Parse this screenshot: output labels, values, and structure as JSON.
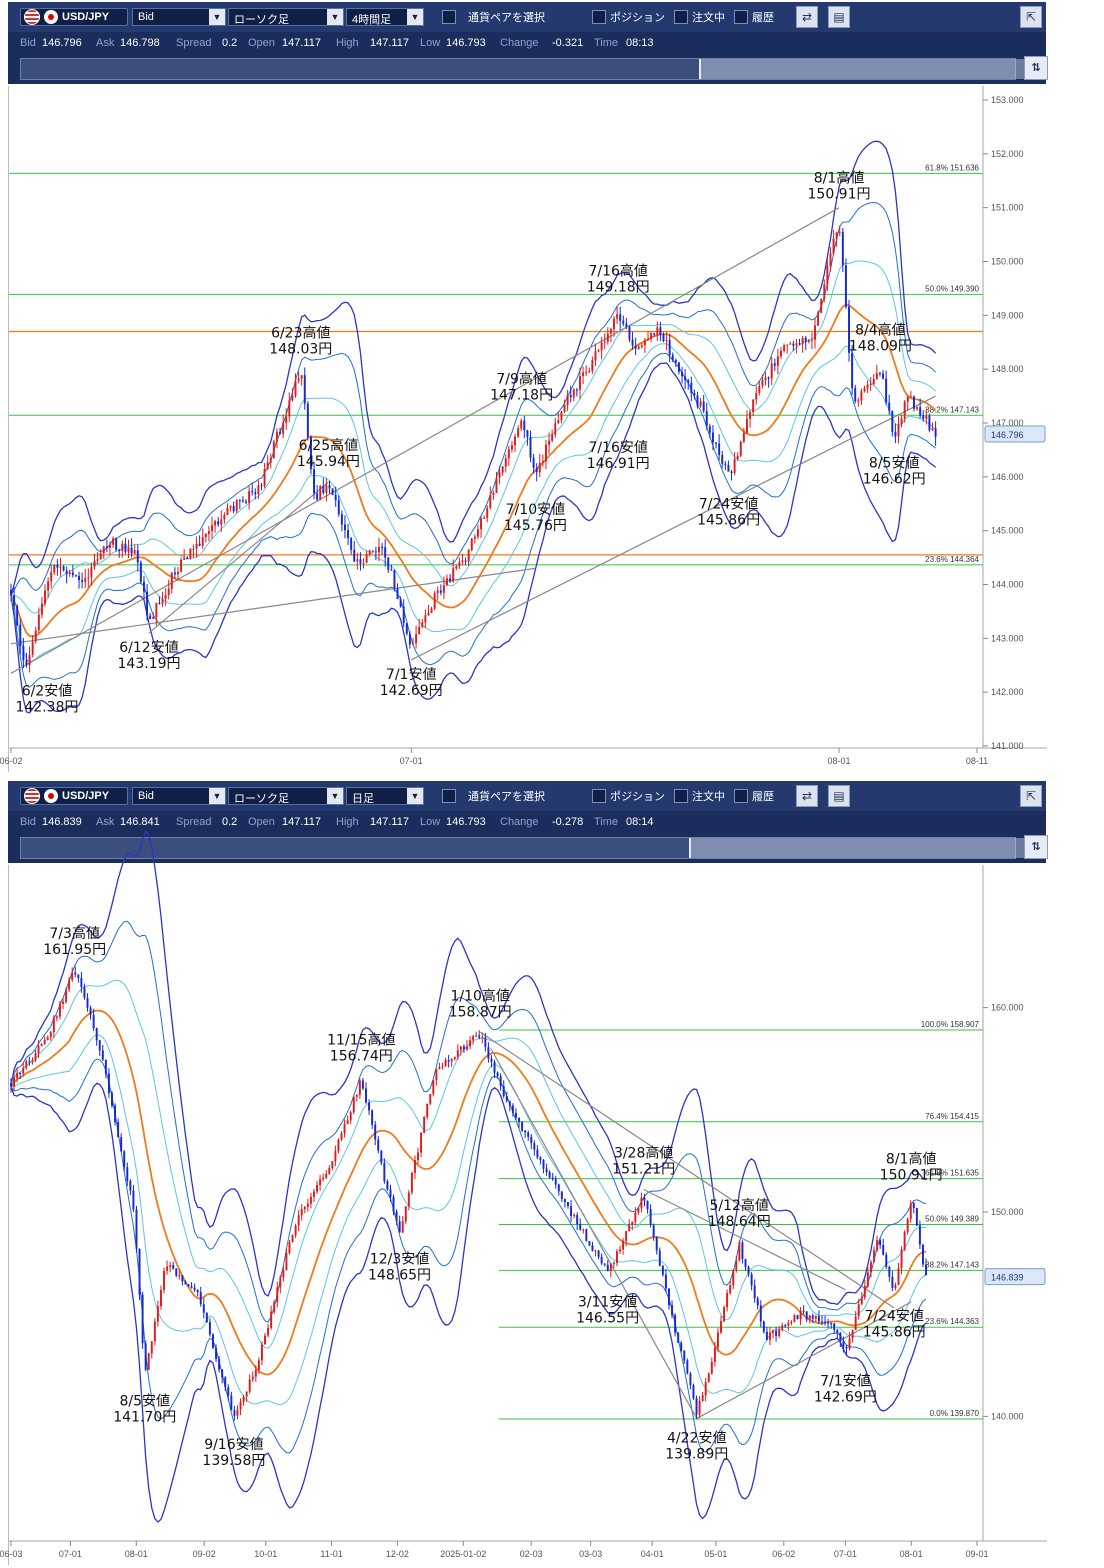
{
  "panels": [
    {
      "toolbar": {
        "pair": "USD/JPY",
        "price_type": "Bid",
        "chart_type": "ローソク足",
        "timeframe": "4時間足",
        "select_pair": "通貨ペアを選択",
        "position_label": "ポジション",
        "orders_label": "注文中",
        "history_label": "履歴"
      },
      "quote": {
        "bid_label": "Bid",
        "bid": "146.796",
        "ask_label": "Ask",
        "ask": "146.798",
        "spread_label": "Spread",
        "spread": "0.2",
        "open_label": "Open",
        "open": "147.117",
        "high_label": "High",
        "high": "147.117",
        "low_label": "Low",
        "low": "146.793",
        "change_label": "Change",
        "change": "-0.321",
        "time_label": "Time",
        "time": "08:13"
      },
      "current_price_tag": "146.796"
    },
    {
      "toolbar": {
        "pair": "USD/JPY",
        "price_type": "Bid",
        "chart_type": "ローソク足",
        "timeframe": "日足",
        "select_pair": "通貨ペアを選択",
        "position_label": "ポジション",
        "orders_label": "注文中",
        "history_label": "履歴"
      },
      "quote": {
        "bid_label": "Bid",
        "bid": "146.839",
        "ask_label": "Ask",
        "ask": "146.841",
        "spread_label": "Spread",
        "spread": "0.2",
        "open_label": "Open",
        "open": "147.117",
        "high_label": "High",
        "high": "147.117",
        "low_label": "Low",
        "low": "146.793",
        "change_label": "Change",
        "change": "-0.278",
        "time_label": "Time",
        "time": "08:14"
      },
      "current_price_tag": "146.839"
    }
  ],
  "chart_data": [
    {
      "type": "candlestick",
      "timeframe": "4時間足",
      "ylim": [
        141.0,
        153.0
      ],
      "yticks": [
        "141.000",
        "142.000",
        "143.000",
        "144.000",
        "145.000",
        "146.000",
        "147.000",
        "148.000",
        "149.000",
        "150.000",
        "151.000",
        "152.000",
        "153.000"
      ],
      "x_range": [
        "2025-06-02",
        "2025-08-11"
      ],
      "xticks": [
        {
          "date": "2025-06-02",
          "label": "06-02"
        },
        {
          "date": "2025-07-01",
          "label": "07-01"
        },
        {
          "date": "2025-08-01",
          "label": "08-01"
        },
        {
          "date": "2025-08-11",
          "label": "08-11"
        }
      ],
      "current_price": 146.796,
      "fib_levels": [
        {
          "label": "23.6%",
          "value": "144.364",
          "v": 144.364
        },
        {
          "label": "38.2%",
          "value": "147.143",
          "v": 147.143
        },
        {
          "label": "50.0%",
          "value": "149.390",
          "v": 149.39
        },
        {
          "label": "61.8%",
          "value": "151.636",
          "v": 151.636
        }
      ],
      "horizontal_lines": [
        148.7,
        144.55
      ],
      "annotations": [
        {
          "date": "2025-06-02",
          "price": 142.38,
          "kind": "low",
          "label": "6/2安値",
          "value": "142.38円"
        },
        {
          "date": "2025-06-12",
          "price": 143.19,
          "kind": "low",
          "label": "6/12安値",
          "value": "143.19円"
        },
        {
          "date": "2025-06-23",
          "price": 148.03,
          "kind": "high",
          "label": "6/23高値",
          "value": "148.03円"
        },
        {
          "date": "2025-06-25",
          "price": 145.94,
          "kind": "high",
          "label": "6/25高値",
          "value": "145.94円"
        },
        {
          "date": "2025-07-01",
          "price": 142.69,
          "kind": "low",
          "label": "7/1安値",
          "value": "142.69円"
        },
        {
          "date": "2025-07-09",
          "price": 147.18,
          "kind": "high",
          "label": "7/9高値",
          "value": "147.18円"
        },
        {
          "date": "2025-07-10",
          "price": 145.76,
          "kind": "low",
          "label": "7/10安値",
          "value": "145.76円"
        },
        {
          "date": "2025-07-16",
          "price": 149.18,
          "kind": "high",
          "label": "7/16高値",
          "value": "149.18円"
        },
        {
          "date": "2025-07-16",
          "price": 146.91,
          "kind": "low",
          "label": "7/16安値",
          "value": "146.91円"
        },
        {
          "date": "2025-07-24",
          "price": 145.86,
          "kind": "low",
          "label": "7/24安値",
          "value": "145.86円"
        },
        {
          "date": "2025-08-01",
          "price": 150.91,
          "kind": "high",
          "label": "8/1高値",
          "value": "150.91円"
        },
        {
          "date": "2025-08-04",
          "price": 148.09,
          "kind": "high",
          "label": "8/4高値",
          "value": "148.09円"
        },
        {
          "date": "2025-08-05",
          "price": 146.62,
          "kind": "low",
          "label": "8/5安値",
          "value": "146.62円"
        }
      ],
      "price_path": [
        [
          "2025-06-02",
          143.9
        ],
        [
          "2025-06-03",
          142.4
        ],
        [
          "2025-06-05",
          144.4
        ],
        [
          "2025-06-07",
          144.0
        ],
        [
          "2025-06-09",
          144.8
        ],
        [
          "2025-06-11",
          144.6
        ],
        [
          "2025-06-12",
          143.3
        ],
        [
          "2025-06-14",
          144.3
        ],
        [
          "2025-06-17",
          145.2
        ],
        [
          "2025-06-20",
          145.8
        ],
        [
          "2025-06-23",
          148.0
        ],
        [
          "2025-06-24",
          145.6
        ],
        [
          "2025-06-25",
          145.9
        ],
        [
          "2025-06-27",
          144.4
        ],
        [
          "2025-06-29",
          144.7
        ],
        [
          "2025-07-01",
          142.8
        ],
        [
          "2025-07-03",
          143.9
        ],
        [
          "2025-07-05",
          144.5
        ],
        [
          "2025-07-07",
          145.8
        ],
        [
          "2025-07-09",
          147.1
        ],
        [
          "2025-07-10",
          146.0
        ],
        [
          "2025-07-12",
          147.3
        ],
        [
          "2025-07-14",
          148.1
        ],
        [
          "2025-07-16",
          149.1
        ],
        [
          "2025-07-17",
          148.4
        ],
        [
          "2025-07-19",
          148.7
        ],
        [
          "2025-07-22",
          147.3
        ],
        [
          "2025-07-24",
          146.0
        ],
        [
          "2025-07-26",
          147.5
        ],
        [
          "2025-07-28",
          148.4
        ],
        [
          "2025-07-30",
          148.6
        ],
        [
          "2025-08-01",
          150.8
        ],
        [
          "2025-08-02",
          147.4
        ],
        [
          "2025-08-04",
          148.0
        ],
        [
          "2025-08-05",
          146.7
        ],
        [
          "2025-08-06",
          147.5
        ],
        [
          "2025-08-08",
          146.8
        ]
      ]
    },
    {
      "type": "candlestick",
      "timeframe": "日足",
      "ylim": [
        134.0,
        166.0
      ],
      "yticks": [
        "140.000",
        "150.000",
        "160.000"
      ],
      "x_range": [
        "2024-06-03",
        "2025-09-01"
      ],
      "xticks": [
        {
          "date": "2024-06-03",
          "label": "06-03"
        },
        {
          "date": "2024-07-01",
          "label": "07-01"
        },
        {
          "date": "2024-08-01",
          "label": "08-01"
        },
        {
          "date": "2024-09-02",
          "label": "09-02"
        },
        {
          "date": "2024-10-01",
          "label": "10-01"
        },
        {
          "date": "2024-11-01",
          "label": "11-01"
        },
        {
          "date": "2024-12-02",
          "label": "12-02"
        },
        {
          "date": "2025-01-02",
          "label": "2025-01-02"
        },
        {
          "date": "2025-02-03",
          "label": "02-03"
        },
        {
          "date": "2025-03-03",
          "label": "03-03"
        },
        {
          "date": "2025-04-01",
          "label": "04-01"
        },
        {
          "date": "2025-05-01",
          "label": "05-01"
        },
        {
          "date": "2025-06-02",
          "label": "06-02"
        },
        {
          "date": "2025-07-01",
          "label": "07-01"
        },
        {
          "date": "2025-08-01",
          "label": "08-01"
        },
        {
          "date": "2025-09-01",
          "label": "09-01"
        }
      ],
      "current_price": 146.839,
      "fib_levels": [
        {
          "label": "0.0%",
          "value": "139.870",
          "v": 139.87
        },
        {
          "label": "23.6%",
          "value": "144.363",
          "v": 144.363
        },
        {
          "label": "38.2%",
          "value": "147.143",
          "v": 147.143
        },
        {
          "label": "50.0%",
          "value": "149.389",
          "v": 149.389
        },
        {
          "label": "61.8%",
          "value": "151.635",
          "v": 151.635
        },
        {
          "label": "76.4%",
          "value": "154.415",
          "v": 154.415
        },
        {
          "label": "100.0%",
          "value": "158.907",
          "v": 158.907
        }
      ],
      "annotations": [
        {
          "date": "2024-07-03",
          "price": 161.95,
          "kind": "high",
          "label": "7/3高値",
          "value": "161.95円"
        },
        {
          "date": "2024-08-05",
          "price": 141.7,
          "kind": "low",
          "label": "8/5安値",
          "value": "141.70円"
        },
        {
          "date": "2024-09-16",
          "price": 139.58,
          "kind": "low",
          "label": "9/16安値",
          "value": "139.58円"
        },
        {
          "date": "2024-11-15",
          "price": 156.74,
          "kind": "high",
          "label": "11/15高値",
          "value": "156.74円"
        },
        {
          "date": "2024-12-03",
          "price": 148.65,
          "kind": "low",
          "label": "12/3安値",
          "value": "148.65円"
        },
        {
          "date": "2025-01-10",
          "price": 158.87,
          "kind": "high",
          "label": "1/10高値",
          "value": "158.87円"
        },
        {
          "date": "2025-03-11",
          "price": 146.55,
          "kind": "low",
          "label": "3/11安値",
          "value": "146.55円"
        },
        {
          "date": "2025-03-28",
          "price": 151.21,
          "kind": "high",
          "label": "3/28高値",
          "value": "151.21円"
        },
        {
          "date": "2025-04-22",
          "price": 139.89,
          "kind": "low",
          "label": "4/22安値",
          "value": "139.89円"
        },
        {
          "date": "2025-05-12",
          "price": 148.64,
          "kind": "high",
          "label": "5/12高値",
          "value": "148.64円"
        },
        {
          "date": "2025-07-01",
          "price": 142.69,
          "kind": "low",
          "label": "7/1安値",
          "value": "142.69円"
        },
        {
          "date": "2025-07-24",
          "price": 145.86,
          "kind": "low",
          "label": "7/24安値",
          "value": "145.86円"
        },
        {
          "date": "2025-08-01",
          "price": 150.91,
          "kind": "high",
          "label": "8/1高値",
          "value": "150.91円"
        }
      ],
      "price_path": [
        [
          "2024-06-03",
          156.3
        ],
        [
          "2024-06-20",
          158.5
        ],
        [
          "2024-07-03",
          161.9
        ],
        [
          "2024-07-15",
          158.0
        ],
        [
          "2024-07-31",
          150.0
        ],
        [
          "2024-08-05",
          142.0
        ],
        [
          "2024-08-15",
          147.5
        ],
        [
          "2024-08-30",
          146.0
        ],
        [
          "2024-09-16",
          140.0
        ],
        [
          "2024-09-27",
          142.5
        ],
        [
          "2024-10-15",
          149.5
        ],
        [
          "2024-11-01",
          152.5
        ],
        [
          "2024-11-15",
          156.5
        ],
        [
          "2024-11-25",
          152.0
        ],
        [
          "2024-12-03",
          149.0
        ],
        [
          "2024-12-20",
          157.0
        ],
        [
          "2025-01-10",
          158.7
        ],
        [
          "2025-01-20",
          156.0
        ],
        [
          "2025-02-10",
          152.0
        ],
        [
          "2025-03-11",
          147.0
        ],
        [
          "2025-03-28",
          150.9
        ],
        [
          "2025-04-10",
          145.0
        ],
        [
          "2025-04-22",
          140.2
        ],
        [
          "2025-05-01",
          143.5
        ],
        [
          "2025-05-12",
          148.4
        ],
        [
          "2025-05-25",
          143.8
        ],
        [
          "2025-06-10",
          145.0
        ],
        [
          "2025-06-25",
          144.5
        ],
        [
          "2025-07-01",
          143.0
        ],
        [
          "2025-07-16",
          148.8
        ],
        [
          "2025-07-24",
          146.1
        ],
        [
          "2025-08-01",
          150.7
        ],
        [
          "2025-08-08",
          146.8
        ]
      ]
    }
  ]
}
